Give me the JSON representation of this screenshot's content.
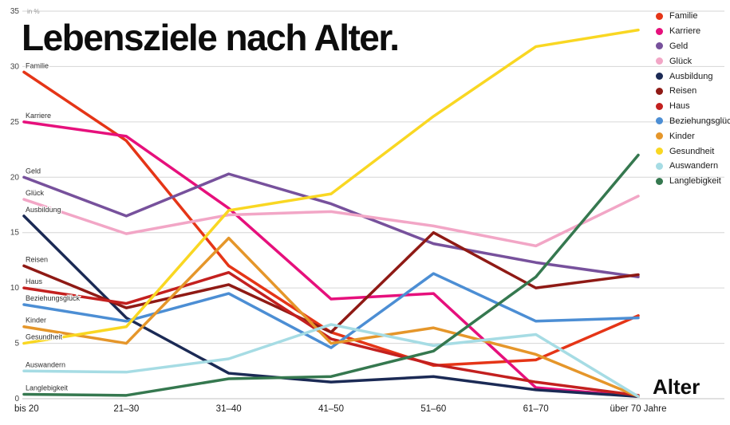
{
  "chart_data": {
    "type": "line",
    "title": "Lebensziele nach Alter.",
    "xlabel": "Alter",
    "ylabel": "in %",
    "ylim": [
      0,
      35
    ],
    "y_ticks": [
      0,
      5,
      10,
      15,
      20,
      25,
      30,
      35
    ],
    "grid": "horizontal",
    "legend_position": "top-right",
    "categories": [
      "bis 20",
      "21–30",
      "31–40",
      "41–50",
      "51–60",
      "61–70",
      "über 70 Jahre"
    ],
    "series": [
      {
        "name": "Familie",
        "color": "#e53517",
        "values": [
          29.5,
          23.3,
          12,
          6,
          3,
          3.5,
          7.5
        ]
      },
      {
        "name": "Karriere",
        "color": "#e6107c",
        "values": [
          25,
          23.7,
          17.2,
          9,
          9.5,
          1,
          0.2
        ]
      },
      {
        "name": "Geld",
        "color": "#77519c",
        "values": [
          20,
          16.5,
          20.3,
          17.6,
          14,
          12.3,
          11
        ]
      },
      {
        "name": "Glück",
        "color": "#f2a6c6",
        "values": [
          18,
          14.9,
          16.6,
          16.9,
          15.6,
          13.8,
          18.3
        ]
      },
      {
        "name": "Ausbildung",
        "color": "#1b2a55",
        "values": [
          16.5,
          7.3,
          2.3,
          1.5,
          2,
          0.8,
          0.2
        ]
      },
      {
        "name": "Reisen",
        "color": "#8f1a15",
        "values": [
          12,
          8.2,
          10.3,
          6,
          15,
          10,
          11.2
        ]
      },
      {
        "name": "Haus",
        "color": "#c3201f",
        "values": [
          10,
          8.6,
          11.4,
          5.4,
          3.1,
          1.5,
          0.3
        ]
      },
      {
        "name": "Beziehungsglück",
        "color": "#4c8ed4",
        "values": [
          8.5,
          7,
          9.5,
          4.6,
          11.3,
          7,
          7.3
        ]
      },
      {
        "name": "Kinder",
        "color": "#e5962a",
        "values": [
          6.5,
          5,
          14.5,
          5,
          6.4,
          4,
          0.2
        ]
      },
      {
        "name": "Gesundheit",
        "color": "#f9d722",
        "values": [
          5,
          6.5,
          17,
          18.5,
          25.5,
          31.8,
          33.3
        ]
      },
      {
        "name": "Auswandern",
        "color": "#a6dce4",
        "values": [
          2.5,
          2.4,
          3.6,
          6.7,
          4.8,
          5.8,
          0.2
        ]
      },
      {
        "name": "Langlebigkeit",
        "color": "#35784f",
        "values": [
          0.4,
          0.3,
          1.8,
          2,
          4.3,
          11,
          22
        ]
      }
    ]
  }
}
